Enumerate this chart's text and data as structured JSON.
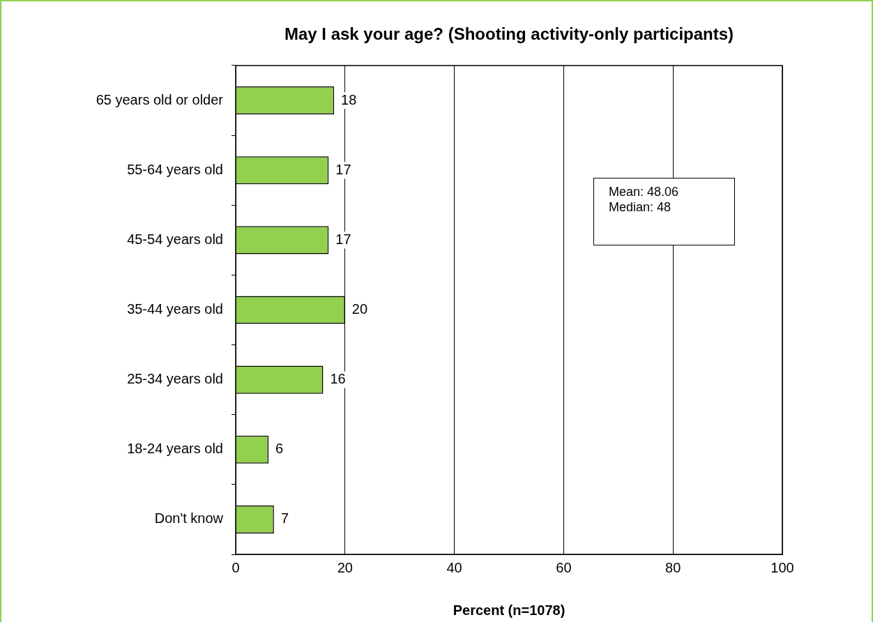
{
  "chart_data": {
    "type": "bar",
    "orientation": "horizontal",
    "title": "May I ask your age? (Shooting activity-only participants)",
    "xlabel": "Percent (n=1078)",
    "categories": [
      "65 years old or older",
      "55-64 years old",
      "45-54 years old",
      "35-44 years old",
      "25-34 years old",
      "18-24 years old",
      "Don't know"
    ],
    "values": [
      18,
      17,
      17,
      20,
      16,
      6,
      7
    ],
    "color": "#92d050",
    "data_labels": true,
    "xlim": [
      0,
      100
    ],
    "xticks": [
      0,
      20,
      40,
      60,
      80,
      100
    ],
    "grid": "x",
    "legend": false,
    "annotations": [
      "Mean: 48.06",
      "Median: 48"
    ]
  }
}
